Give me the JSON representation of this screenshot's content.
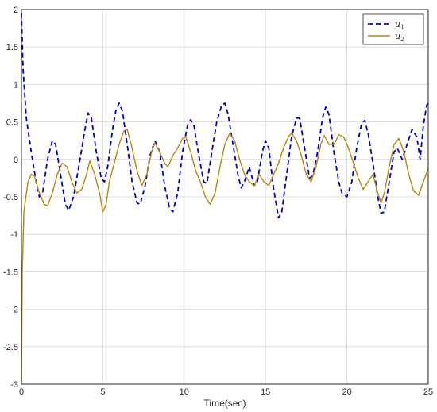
{
  "chart_data": {
    "type": "line",
    "title": "",
    "xlabel": "Time(sec)",
    "ylabel": "",
    "xlim": [
      0,
      25
    ],
    "ylim": [
      -3,
      2
    ],
    "grid": true,
    "legend_position": "top-right",
    "x_ticks": [
      "0",
      "5",
      "10",
      "15",
      "20",
      "25"
    ],
    "y_ticks": [
      "2",
      "1.5",
      "1",
      "0.5",
      "0",
      "-0.5",
      "-1",
      "-1.5",
      "-2",
      "-2.5",
      "-3"
    ],
    "series": [
      {
        "name": "u",
        "subscript": "1",
        "color": "#0000cc",
        "dash": true,
        "points": [
          [
            0,
            1.95
          ],
          [
            0.1,
            1.2
          ],
          [
            0.3,
            0.55
          ],
          [
            0.6,
            0.1
          ],
          [
            0.9,
            -0.3
          ],
          [
            1.1,
            -0.5
          ],
          [
            1.3,
            -0.45
          ],
          [
            1.6,
            0.0
          ],
          [
            1.9,
            0.25
          ],
          [
            2.1,
            0.2
          ],
          [
            2.4,
            -0.2
          ],
          [
            2.7,
            -0.6
          ],
          [
            2.9,
            -0.68
          ],
          [
            3.2,
            -0.5
          ],
          [
            3.6,
            0.0
          ],
          [
            3.9,
            0.4
          ],
          [
            4.1,
            0.62
          ],
          [
            4.3,
            0.55
          ],
          [
            4.6,
            0.1
          ],
          [
            4.9,
            -0.25
          ],
          [
            5.1,
            -0.3
          ],
          [
            5.3,
            -0.1
          ],
          [
            5.6,
            0.4
          ],
          [
            5.8,
            0.65
          ],
          [
            6.0,
            0.75
          ],
          [
            6.2,
            0.65
          ],
          [
            6.5,
            0.2
          ],
          [
            6.8,
            -0.3
          ],
          [
            7.1,
            -0.58
          ],
          [
            7.3,
            -0.6
          ],
          [
            7.6,
            -0.35
          ],
          [
            7.9,
            0.05
          ],
          [
            8.2,
            0.25
          ],
          [
            8.5,
            0.1
          ],
          [
            8.8,
            -0.35
          ],
          [
            9.1,
            -0.65
          ],
          [
            9.3,
            -0.7
          ],
          [
            9.6,
            -0.45
          ],
          [
            9.9,
            0.1
          ],
          [
            10.2,
            0.45
          ],
          [
            10.4,
            0.53
          ],
          [
            10.6,
            0.45
          ],
          [
            10.9,
            0.05
          ],
          [
            11.2,
            -0.3
          ],
          [
            11.4,
            -0.32
          ],
          [
            11.7,
            0.1
          ],
          [
            12.0,
            0.5
          ],
          [
            12.3,
            0.72
          ],
          [
            12.5,
            0.75
          ],
          [
            12.7,
            0.6
          ],
          [
            13.0,
            0.2
          ],
          [
            13.3,
            -0.2
          ],
          [
            13.5,
            -0.38
          ],
          [
            13.7,
            -0.3
          ],
          [
            14.0,
            -0.1
          ],
          [
            14.3,
            -0.35
          ],
          [
            14.5,
            -0.3
          ],
          [
            14.8,
            0.1
          ],
          [
            15.0,
            0.25
          ],
          [
            15.2,
            0.15
          ],
          [
            15.5,
            -0.4
          ],
          [
            15.8,
            -0.78
          ],
          [
            16.0,
            -0.7
          ],
          [
            16.3,
            -0.2
          ],
          [
            16.6,
            0.3
          ],
          [
            16.9,
            0.55
          ],
          [
            17.1,
            0.55
          ],
          [
            17.4,
            0.15
          ],
          [
            17.7,
            -0.25
          ],
          [
            17.9,
            -0.22
          ],
          [
            18.2,
            0.1
          ],
          [
            18.5,
            0.55
          ],
          [
            18.7,
            0.7
          ],
          [
            18.9,
            0.6
          ],
          [
            19.2,
            0.1
          ],
          [
            19.5,
            -0.3
          ],
          [
            19.7,
            -0.45
          ],
          [
            20.0,
            -0.5
          ],
          [
            20.3,
            -0.3
          ],
          [
            20.6,
            0.15
          ],
          [
            20.9,
            0.48
          ],
          [
            21.1,
            0.52
          ],
          [
            21.3,
            0.35
          ],
          [
            21.6,
            -0.05
          ],
          [
            21.9,
            -0.5
          ],
          [
            22.1,
            -0.72
          ],
          [
            22.3,
            -0.7
          ],
          [
            22.6,
            -0.3
          ],
          [
            22.9,
            0.1
          ],
          [
            23.1,
            0.15
          ],
          [
            23.4,
            0.0
          ],
          [
            23.7,
            0.2
          ],
          [
            24.0,
            0.4
          ],
          [
            24.3,
            0.3
          ],
          [
            24.5,
            0.0
          ],
          [
            24.7,
            0.45
          ],
          [
            24.9,
            0.72
          ],
          [
            25.0,
            0.75
          ]
        ]
      },
      {
        "name": "u",
        "subscript": "2",
        "color": "#b8860b",
        "dash": false,
        "points": [
          [
            0,
            -3.0
          ],
          [
            0.05,
            -1.5
          ],
          [
            0.15,
            -0.7
          ],
          [
            0.4,
            -0.3
          ],
          [
            0.6,
            -0.2
          ],
          [
            0.8,
            -0.22
          ],
          [
            1.1,
            -0.45
          ],
          [
            1.4,
            -0.6
          ],
          [
            1.6,
            -0.62
          ],
          [
            1.9,
            -0.45
          ],
          [
            2.2,
            -0.2
          ],
          [
            2.5,
            -0.05
          ],
          [
            2.8,
            -0.1
          ],
          [
            3.1,
            -0.3
          ],
          [
            3.4,
            -0.45
          ],
          [
            3.7,
            -0.4
          ],
          [
            4.0,
            -0.2
          ],
          [
            4.2,
            -0.02
          ],
          [
            4.5,
            -0.2
          ],
          [
            4.8,
            -0.45
          ],
          [
            5.0,
            -0.7
          ],
          [
            5.2,
            -0.6
          ],
          [
            5.4,
            -0.3
          ],
          [
            5.7,
            -0.05
          ],
          [
            6.0,
            0.2
          ],
          [
            6.3,
            0.38
          ],
          [
            6.5,
            0.4
          ],
          [
            6.8,
            0.15
          ],
          [
            7.1,
            -0.15
          ],
          [
            7.4,
            -0.35
          ],
          [
            7.7,
            -0.2
          ],
          [
            8.0,
            0.1
          ],
          [
            8.2,
            0.22
          ],
          [
            8.5,
            0.1
          ],
          [
            8.8,
            -0.05
          ],
          [
            9.0,
            -0.1
          ],
          [
            9.3,
            0.05
          ],
          [
            9.6,
            0.15
          ],
          [
            9.9,
            0.28
          ],
          [
            10.1,
            0.3
          ],
          [
            10.4,
            0.1
          ],
          [
            10.7,
            -0.15
          ],
          [
            11.0,
            -0.3
          ],
          [
            11.3,
            -0.5
          ],
          [
            11.6,
            -0.6
          ],
          [
            11.9,
            -0.45
          ],
          [
            12.2,
            -0.1
          ],
          [
            12.5,
            0.2
          ],
          [
            12.8,
            0.35
          ],
          [
            13.1,
            0.25
          ],
          [
            13.4,
            0.0
          ],
          [
            13.7,
            -0.2
          ],
          [
            14.0,
            -0.3
          ],
          [
            14.3,
            -0.35
          ],
          [
            14.6,
            -0.2
          ],
          [
            14.9,
            -0.3
          ],
          [
            15.2,
            -0.35
          ],
          [
            15.5,
            -0.2
          ],
          [
            15.8,
            -0.05
          ],
          [
            16.1,
            0.15
          ],
          [
            16.4,
            0.3
          ],
          [
            16.6,
            0.35
          ],
          [
            16.9,
            0.25
          ],
          [
            17.2,
            0.05
          ],
          [
            17.5,
            -0.2
          ],
          [
            17.8,
            -0.3
          ],
          [
            18.1,
            -0.1
          ],
          [
            18.4,
            0.2
          ],
          [
            18.6,
            0.32
          ],
          [
            18.9,
            0.2
          ],
          [
            19.2,
            0.2
          ],
          [
            19.5,
            0.33
          ],
          [
            19.8,
            0.3
          ],
          [
            20.1,
            0.15
          ],
          [
            20.4,
            -0.05
          ],
          [
            20.7,
            -0.25
          ],
          [
            21.0,
            -0.4
          ],
          [
            21.3,
            -0.3
          ],
          [
            21.6,
            -0.2
          ],
          [
            21.9,
            -0.45
          ],
          [
            22.1,
            -0.58
          ],
          [
            22.3,
            -0.45
          ],
          [
            22.6,
            -0.1
          ],
          [
            22.9,
            0.2
          ],
          [
            23.2,
            0.28
          ],
          [
            23.5,
            0.1
          ],
          [
            23.8,
            -0.2
          ],
          [
            24.1,
            -0.42
          ],
          [
            24.4,
            -0.48
          ],
          [
            24.7,
            -0.3
          ],
          [
            25.0,
            -0.12
          ]
        ]
      }
    ]
  }
}
